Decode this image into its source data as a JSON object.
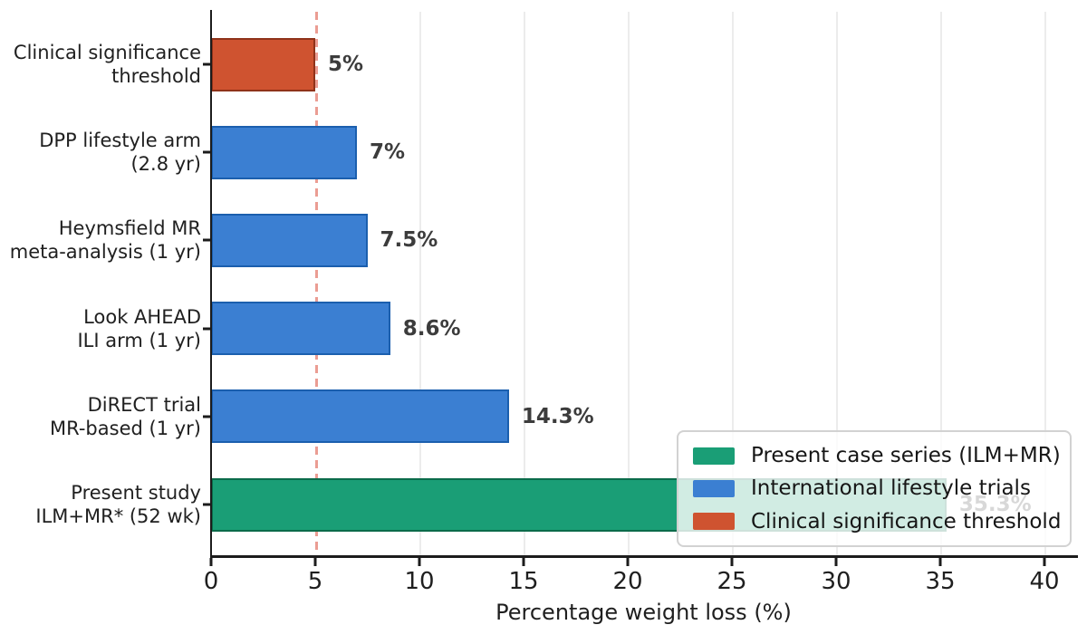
{
  "chart_data": {
    "type": "bar",
    "orientation": "horizontal",
    "xlabel": "Percentage weight loss (%)",
    "xlim": [
      0,
      41.5
    ],
    "xticks": [
      0,
      5,
      10,
      15,
      20,
      25,
      30,
      35,
      40
    ],
    "gridlines": [
      10,
      15,
      20,
      25,
      30,
      35,
      40
    ],
    "grid_color": "#ececec",
    "threshold_line": {
      "value": 5,
      "style": "dashed",
      "color": "#eb9d93"
    },
    "bars": [
      {
        "label_line1": "Clinical significance",
        "label_line2": "threshold",
        "value": 5,
        "value_label": "5%",
        "series": "Clinical significance threshold",
        "fill": "#cf5330",
        "border": "#8f331a"
      },
      {
        "label_line1": "DPP lifestyle arm",
        "label_line2": "(2.8 yr)",
        "value": 7,
        "value_label": "7%",
        "series": "International lifestyle trials",
        "fill": "#3b7fd2",
        "border": "#1b5fae"
      },
      {
        "label_line1": "Heymsfield MR",
        "label_line2": "meta-analysis (1 yr)",
        "value": 7.5,
        "value_label": "7.5%",
        "series": "International lifestyle trials",
        "fill": "#3b7fd2",
        "border": "#1b5fae"
      },
      {
        "label_line1": "Look AHEAD",
        "label_line2": "ILI arm (1 yr)",
        "value": 8.6,
        "value_label": "8.6%",
        "series": "International lifestyle trials",
        "fill": "#3b7fd2",
        "border": "#1b5fae"
      },
      {
        "label_line1": "DiRECT trial",
        "label_line2": "MR-based (1 yr)",
        "value": 14.3,
        "value_label": "14.3%",
        "series": "International lifestyle trials",
        "fill": "#3b7fd2",
        "border": "#1b5fae"
      },
      {
        "label_line1": "Present study",
        "label_line2": "ILM+MR* (52 wk)",
        "value": 35.3,
        "value_label": "35.3%",
        "series": "Present case series (ILM+MR)",
        "fill": "#1a9e76",
        "border": "#0b6b4a"
      }
    ],
    "legend": {
      "position": "lower right",
      "entries": [
        {
          "label": "Present case series (ILM+MR)",
          "color": "#1a9e76"
        },
        {
          "label": "International lifestyle trials",
          "color": "#3b7fd2"
        },
        {
          "label": "Clinical significance threshold",
          "color": "#cf5330"
        }
      ]
    }
  }
}
